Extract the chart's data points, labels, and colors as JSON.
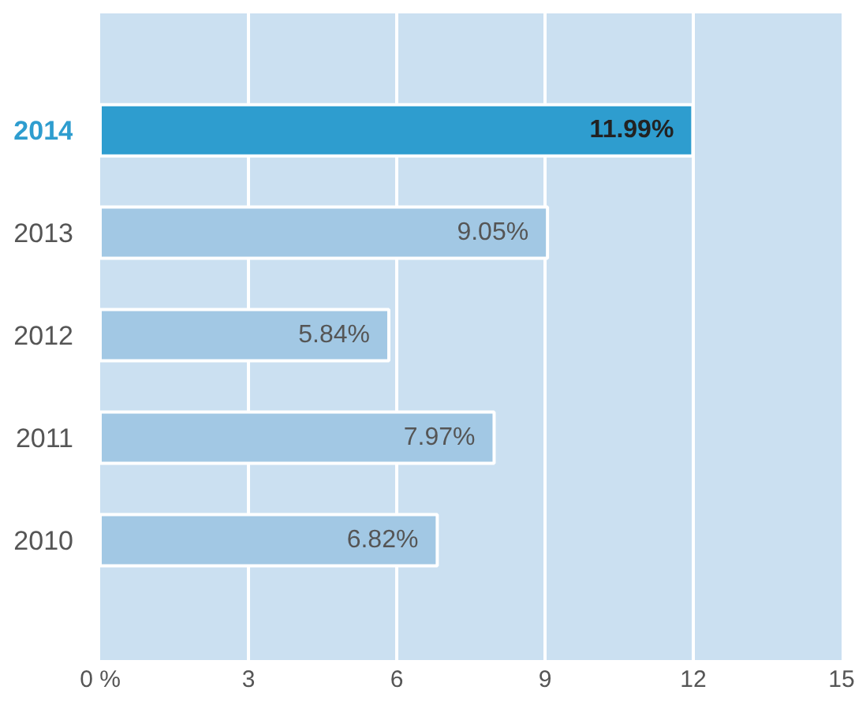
{
  "chart_data": {
    "type": "bar",
    "orientation": "horizontal",
    "categories": [
      "2014",
      "2013",
      "2012",
      "2011",
      "2010"
    ],
    "values": [
      11.99,
      9.05,
      5.84,
      7.97,
      6.82
    ],
    "colors": [
      "#2e9dcf",
      "#a2c8e4",
      "#a2c8e4",
      "#a2c8e4",
      "#a2c8e4"
    ],
    "value_labels": [
      "11.99%",
      "9.05%",
      "5.84%",
      "7.97%",
      "6.82%"
    ],
    "xlim": [
      0,
      15
    ],
    "xticks": [
      {
        "value": 0,
        "label": "0 %"
      },
      3,
      6,
      9,
      12,
      15
    ],
    "grid": "x"
  }
}
